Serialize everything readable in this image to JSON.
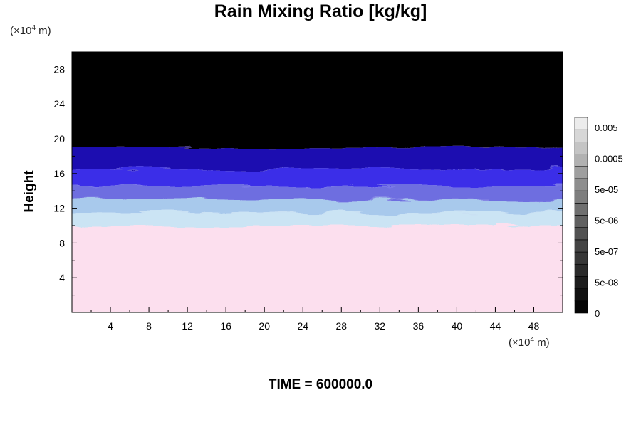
{
  "chart_data": {
    "type": "heatmap",
    "title": "Rain Mixing Ratio [kg/kg]",
    "ylabel": "Height",
    "xlabel": "",
    "x_unit": {
      "prefix": "(×10",
      "exp": "4",
      "suffix": " m)"
    },
    "y_unit": {
      "prefix": "(×10",
      "exp": "4",
      "suffix": " m)"
    },
    "xlim": [
      0,
      51
    ],
    "ylim": [
      0,
      30
    ],
    "x_ticks": [
      4,
      8,
      12,
      16,
      20,
      24,
      28,
      32,
      36,
      40,
      44,
      48
    ],
    "y_ticks": [
      4,
      8,
      12,
      16,
      20,
      24,
      28
    ],
    "layers": [
      {
        "from": 0,
        "to": 10,
        "color": "#fcdfee",
        "label": "pink"
      },
      {
        "from": 10,
        "to": 11.5,
        "color": "#cbe4f4",
        "label": "pale blue"
      },
      {
        "from": 11.5,
        "to": 13,
        "color": "#a8c9ec",
        "label": "light blue"
      },
      {
        "from": 13,
        "to": 14.5,
        "color": "#6e6ee0",
        "label": "medium blue"
      },
      {
        "from": 14.5,
        "to": 16.5,
        "color": "#3a2ee8",
        "label": "blue"
      },
      {
        "from": 16.5,
        "to": 19,
        "color": "#1a10b0",
        "label": "dark blue"
      },
      {
        "from": 19,
        "to": 30,
        "color": "#000000",
        "label": "black"
      }
    ],
    "colorbar": {
      "labels": [
        "0.005",
        "0.0005",
        "5e-05",
        "5e-06",
        "5e-07",
        "5e-08",
        "0"
      ],
      "levels": 16,
      "colors": [
        "#050505",
        "#111111",
        "#1d1d1d",
        "#2a2a2a",
        "#373737",
        "#444444",
        "#525252",
        "#606060",
        "#6f6f6f",
        "#7e7e7e",
        "#8e8e8e",
        "#9f9f9f",
        "#b1b1b1",
        "#c4c4c4",
        "#d7d7d7",
        "#ececec"
      ]
    }
  },
  "time_label": "TIME = 600000.0"
}
